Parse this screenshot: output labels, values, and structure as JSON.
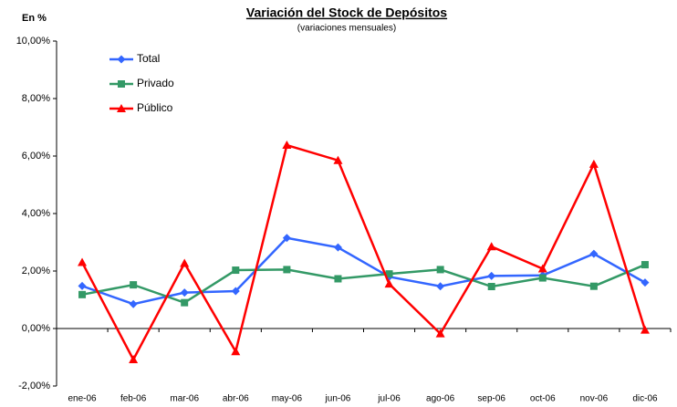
{
  "chart_data": {
    "type": "line",
    "title": "Variación del Stock de Depósitos",
    "subtitle": "(variaciones mensuales)",
    "y_label": "En %",
    "categories": [
      "ene-06",
      "feb-06",
      "mar-06",
      "abr-06",
      "may-06",
      "jun-06",
      "jul-06",
      "ago-06",
      "sep-06",
      "oct-06",
      "nov-06",
      "dic-06"
    ],
    "series": [
      {
        "name": "Total",
        "color": "#3366ff",
        "marker": "diamond",
        "values": [
          1.48,
          0.85,
          1.25,
          1.3,
          3.15,
          2.82,
          1.8,
          1.47,
          1.83,
          1.85,
          2.6,
          1.6
        ]
      },
      {
        "name": "Privado",
        "color": "#339966",
        "marker": "square",
        "values": [
          1.18,
          1.52,
          0.9,
          2.03,
          2.05,
          1.73,
          1.9,
          2.05,
          1.46,
          1.76,
          1.47,
          2.22
        ]
      },
      {
        "name": "Público",
        "color": "#ff0000",
        "marker": "triangle",
        "values": [
          2.3,
          -1.08,
          2.27,
          -0.8,
          6.38,
          5.85,
          1.55,
          -0.18,
          2.85,
          2.08,
          5.72,
          -0.05
        ]
      }
    ],
    "ylim": [
      -2,
      10
    ],
    "yticks": [
      {
        "value": -2,
        "label": "-2,00%"
      },
      {
        "value": 0,
        "label": "0,00%"
      },
      {
        "value": 2,
        "label": "2,00%"
      },
      {
        "value": 4,
        "label": "4,00%"
      },
      {
        "value": 6,
        "label": "6,00%"
      },
      {
        "value": 8,
        "label": "8,00%"
      },
      {
        "value": 10,
        "label": "10,00%"
      }
    ],
    "grid": false,
    "legend": "top-left"
  }
}
